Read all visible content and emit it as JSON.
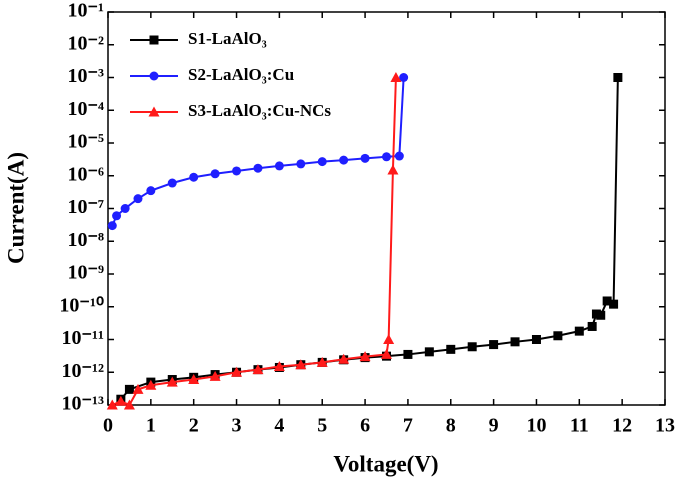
{
  "chart_data": {
    "type": "line",
    "x_label": "Voltage(V)",
    "y_label": "Current(A)",
    "xlim": [
      0,
      13
    ],
    "xticks": [
      0,
      1,
      2,
      3,
      4,
      5,
      6,
      7,
      8,
      9,
      10,
      11,
      12,
      13
    ],
    "ylim": [
      1e-13,
      0.1
    ],
    "log_y": true,
    "yticks": [
      {
        "value": 1e-13,
        "label": "10⁻¹³"
      },
      {
        "value": 1e-12,
        "label": "10⁻¹²"
      },
      {
        "value": 1e-11,
        "label": "10⁻¹¹"
      },
      {
        "value": 1e-10,
        "label": "10⁻¹⁰"
      },
      {
        "value": 1e-09,
        "label": "10⁻⁹"
      },
      {
        "value": 1e-08,
        "label": "10⁻⁸"
      },
      {
        "value": 1e-07,
        "label": "10⁻⁷"
      },
      {
        "value": 1e-06,
        "label": "10⁻⁶"
      },
      {
        "value": 1e-05,
        "label": "10⁻⁵"
      },
      {
        "value": 0.0001,
        "label": "10⁻⁴"
      },
      {
        "value": 0.001,
        "label": "10⁻³"
      },
      {
        "value": 0.01,
        "label": "10⁻²"
      },
      {
        "value": 0.1,
        "label": "10⁻¹"
      }
    ],
    "legend": "upper left",
    "series": [
      {
        "name": "S1-LaAlO₃",
        "color": "#000000",
        "marker": "square",
        "x": [
          0.3,
          0.5,
          1,
          1.5,
          2,
          2.5,
          3,
          3.5,
          4,
          4.5,
          5,
          5.5,
          6,
          6.5,
          7,
          7.5,
          8,
          8.5,
          9,
          9.5,
          10,
          10.5,
          11,
          11.3,
          11.4,
          11.5,
          11.65,
          11.8,
          11.9
        ],
        "values": [
          1.5e-13,
          3e-13,
          5e-13,
          6e-13,
          7e-13,
          8.5e-13,
          1e-12,
          1.2e-12,
          1.4e-12,
          1.7e-12,
          2e-12,
          2.4e-12,
          2.8e-12,
          3.1e-12,
          3.5e-12,
          4.2e-12,
          5e-12,
          6e-12,
          7e-12,
          8.5e-12,
          1e-11,
          1.3e-11,
          1.8e-11,
          2.5e-11,
          6e-11,
          5.5e-11,
          1.5e-10,
          1.2e-10,
          0.001
        ]
      },
      {
        "name": "S2-LaAlO₃:Cu",
        "color": "#1f1fff",
        "marker": "circle",
        "x": [
          0.1,
          0.2,
          0.4,
          0.7,
          1,
          1.5,
          2,
          2.5,
          3,
          3.5,
          4,
          4.5,
          5,
          5.5,
          6,
          6.5,
          6.8,
          6.9
        ],
        "values": [
          3e-08,
          6e-08,
          1e-07,
          2e-07,
          3.5e-07,
          6e-07,
          9e-07,
          1.15e-06,
          1.4e-06,
          1.7e-06,
          2e-06,
          2.3e-06,
          2.7e-06,
          3e-06,
          3.4e-06,
          3.8e-06,
          4e-06,
          0.001
        ]
      },
      {
        "name": "S3-LaAlO₃:Cu-NCs",
        "color": "#ff1a1a",
        "marker": "triangle",
        "x": [
          0.1,
          0.3,
          0.5,
          0.7,
          1,
          1.5,
          2,
          2.5,
          3,
          3.5,
          4,
          4.5,
          5,
          5.5,
          6,
          6.5,
          6.55,
          6.65,
          6.72
        ],
        "values": [
          1e-13,
          1.3e-13,
          1e-13,
          3e-13,
          4e-13,
          5e-13,
          6e-13,
          7.5e-13,
          1e-12,
          1.2e-12,
          1.5e-12,
          1.7e-12,
          2e-12,
          2.5e-12,
          3e-12,
          3.5e-12,
          1e-11,
          1.5e-06,
          0.001
        ]
      }
    ]
  }
}
